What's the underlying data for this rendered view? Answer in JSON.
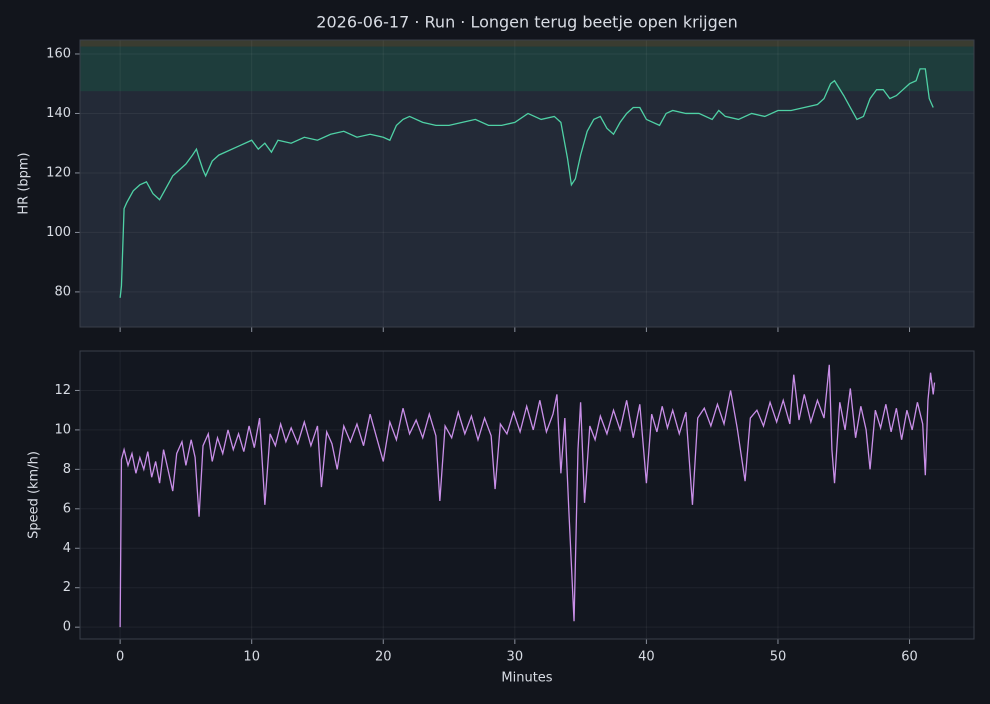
{
  "chart_data": [
    {
      "type": "line",
      "title": "2026-06-17 · Run · Longen terug beetje open krijgen",
      "ylabel": "HR (bpm)",
      "color": "#4fd1a5",
      "background": "#232a37",
      "xlim": [
        -3.05,
        64.9
      ],
      "ylim": [
        68.2,
        164.7
      ],
      "xticks": [
        0,
        10,
        20,
        30,
        40,
        50,
        60
      ],
      "yticks": [
        80,
        100,
        120,
        140,
        160
      ],
      "grid": true,
      "zones": [
        {
          "from": 147.5,
          "to": 162.5,
          "color": "#1e3d3c"
        },
        {
          "from": 162.5,
          "to": 175,
          "color": "#3a3c30"
        }
      ],
      "x": [
        0,
        0.1,
        0.3,
        0.5,
        1,
        1.5,
        2,
        2.5,
        3,
        3.5,
        4,
        4.5,
        5,
        5.5,
        5.8,
        6,
        6.3,
        6.5,
        7,
        7.5,
        8,
        9,
        10,
        10.5,
        11,
        11.5,
        12,
        13,
        14,
        15,
        16,
        17,
        18,
        19,
        20,
        20.5,
        21,
        21.5,
        22,
        23,
        24,
        25,
        26,
        27,
        28,
        29,
        30,
        31,
        32,
        33,
        33.5,
        34,
        34.3,
        34.6,
        35,
        35.5,
        36,
        36.5,
        37,
        37.5,
        38,
        38.5,
        39,
        39.5,
        40,
        41,
        41.5,
        42,
        43,
        44,
        45,
        45.5,
        46,
        47,
        48,
        49,
        50,
        51,
        52,
        53,
        53.5,
        54,
        54.3,
        55,
        55.5,
        56,
        56.5,
        57,
        57.5,
        58,
        58.5,
        59,
        59.5,
        60,
        60.5,
        60.8,
        61.2,
        61.5,
        61.8
      ],
      "values": [
        78,
        82,
        108,
        110,
        114,
        116,
        117,
        113,
        111,
        115,
        119,
        121,
        123,
        126,
        128,
        125,
        121,
        119,
        124,
        126,
        127,
        129,
        131,
        128,
        130,
        127,
        131,
        130,
        132,
        131,
        133,
        134,
        132,
        133,
        132,
        131,
        136,
        138,
        139,
        137,
        136,
        136,
        137,
        138,
        136,
        136,
        137,
        140,
        138,
        139,
        137,
        125,
        116,
        118,
        126,
        134,
        138,
        139,
        135,
        133,
        137,
        140,
        142,
        142,
        138,
        136,
        140,
        141,
        140,
        140,
        138,
        141,
        139,
        138,
        140,
        139,
        141,
        141,
        142,
        143,
        145,
        150,
        151,
        146,
        142,
        138,
        139,
        145,
        148,
        148,
        145,
        146,
        148,
        150,
        151,
        155,
        155,
        145,
        142
      ]
    },
    {
      "type": "line",
      "ylabel": "Speed (km/h)",
      "xlabel": "Minutes",
      "color": "#c98fe8",
      "background": "#131720",
      "xlim": [
        -3.05,
        64.9
      ],
      "ylim": [
        -0.6,
        14.0
      ],
      "xticks": [
        0,
        10,
        20,
        30,
        40,
        50,
        60
      ],
      "yticks": [
        0,
        2,
        4,
        6,
        8,
        10,
        12
      ],
      "grid": true,
      "x": [
        0,
        0.1,
        0.3,
        0.6,
        0.9,
        1.2,
        1.5,
        1.8,
        2.1,
        2.4,
        2.7,
        3.0,
        3.3,
        3.6,
        4.0,
        4.3,
        4.7,
        5.0,
        5.4,
        5.7,
        6.0,
        6.3,
        6.7,
        7.0,
        7.4,
        7.8,
        8.2,
        8.6,
        9.0,
        9.4,
        9.8,
        10.2,
        10.6,
        11.0,
        11.4,
        11.8,
        12.2,
        12.6,
        13.0,
        13.5,
        14,
        14.5,
        15.0,
        15.3,
        15.7,
        16.1,
        16.5,
        17,
        17.5,
        18,
        18.5,
        19,
        19.5,
        20,
        20.5,
        21,
        21.5,
        22,
        22.5,
        23,
        23.5,
        24,
        24.3,
        24.7,
        25.2,
        25.7,
        26.2,
        26.7,
        27.2,
        27.7,
        28.2,
        28.5,
        28.9,
        29.4,
        29.9,
        30.4,
        30.9,
        31.4,
        31.9,
        32.4,
        32.9,
        33.2,
        33.5,
        33.8,
        34.1,
        34.5,
        34.8,
        35.0,
        35.3,
        35.7,
        36.1,
        36.5,
        37,
        37.5,
        38,
        38.5,
        39,
        39.5,
        40.0,
        40.4,
        40.8,
        41.2,
        41.6,
        42,
        42.5,
        43,
        43.5,
        43.9,
        44.4,
        44.9,
        45.4,
        45.9,
        46.4,
        46.9,
        47.5,
        47.9,
        48.4,
        48.9,
        49.4,
        49.9,
        50.4,
        50.9,
        51.2,
        51.6,
        52,
        52.5,
        53,
        53.5,
        53.9,
        54.1,
        54.3,
        54.7,
        55.1,
        55.5,
        55.9,
        56.3,
        56.7,
        57.0,
        57.4,
        57.8,
        58.2,
        58.6,
        59,
        59.4,
        59.8,
        60.2,
        60.6,
        61.0,
        61.2,
        61.4,
        61.6,
        61.8,
        61.9
      ],
      "values": [
        0,
        8.5,
        9.0,
        8.2,
        8.8,
        7.8,
        8.6,
        8.0,
        8.9,
        7.6,
        8.4,
        7.3,
        9.0,
        8.1,
        6.9,
        8.8,
        9.4,
        8.2,
        9.5,
        8.6,
        5.6,
        9.2,
        9.8,
        8.4,
        9.6,
        8.8,
        10.0,
        9.0,
        9.8,
        8.9,
        10.2,
        9.1,
        10.6,
        6.2,
        9.8,
        9.2,
        10.3,
        9.4,
        10.1,
        9.3,
        10.4,
        9.2,
        10.2,
        7.1,
        9.9,
        9.3,
        8.0,
        10.2,
        9.4,
        10.3,
        9.2,
        10.8,
        9.6,
        8.4,
        10.4,
        9.5,
        11.1,
        9.8,
        10.5,
        9.6,
        10.8,
        9.7,
        6.4,
        10.2,
        9.6,
        10.9,
        9.8,
        10.7,
        9.5,
        10.6,
        9.7,
        7.0,
        10.3,
        9.8,
        10.9,
        9.9,
        11.2,
        10.0,
        11.5,
        9.9,
        10.8,
        11.8,
        7.8,
        10.6,
        6.0,
        0.3,
        9.0,
        11.4,
        6.3,
        10.2,
        9.5,
        10.7,
        9.8,
        11.0,
        10.0,
        11.5,
        9.6,
        11.3,
        7.3,
        10.8,
        9.9,
        11.2,
        10.1,
        11.0,
        9.8,
        10.9,
        6.2,
        10.6,
        11.1,
        10.2,
        11.3,
        10.3,
        12.0,
        10.1,
        7.4,
        10.6,
        11.0,
        10.2,
        11.4,
        10.4,
        11.5,
        10.3,
        12.8,
        10.5,
        11.8,
        10.4,
        11.5,
        10.6,
        13.3,
        9.0,
        7.3,
        11.4,
        10.0,
        12.1,
        9.6,
        11.2,
        10.0,
        8.0,
        11.0,
        10.1,
        11.3,
        9.9,
        11.1,
        9.5,
        11.0,
        10.0,
        11.4,
        10.3,
        7.7,
        11.5,
        12.9,
        11.8,
        12.4
      ]
    }
  ]
}
